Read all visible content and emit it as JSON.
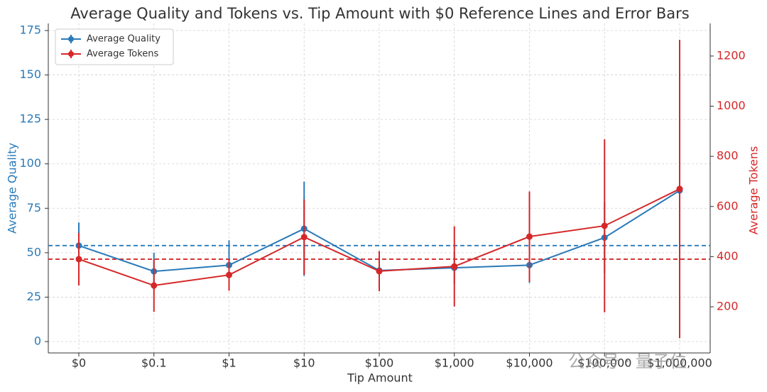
{
  "chart_data": {
    "type": "line",
    "title": "Average Quality and Tokens vs. Tip Amount with $0 Reference Lines and Error Bars",
    "x_label": "Tip Amount",
    "y_label": "Average Quality",
    "y2_label": "Average Tokens",
    "categories": [
      "$0",
      "$0.1",
      "$1",
      "$10",
      "$100",
      "$1,000",
      "$10,000",
      "$100,000",
      "$1,000,000"
    ],
    "series": [
      {
        "name": "Average Quality",
        "color": "#2a7ab8",
        "values": [
          54,
          39.5,
          43,
          63.5,
          40,
          41.5,
          43,
          58.5,
          85
        ],
        "errors": [
          13,
          10.5,
          14,
          26.5,
          8,
          9,
          10,
          20,
          30
        ]
      },
      {
        "name": "Average Tokens",
        "color": "#d62728",
        "axis": "y2",
        "values": [
          390,
          285,
          327,
          478,
          342,
          361,
          480,
          523,
          670
        ],
        "errors": [
          105,
          105,
          63,
          150,
          80,
          160,
          180,
          345,
          595
        ]
      }
    ],
    "reference_lines": [
      {
        "axis": "y",
        "value": 54,
        "color": "#2a7ab8"
      },
      {
        "axis": "y2",
        "value": 390,
        "color": "#d62728"
      }
    ],
    "ylim": [
      -6.4,
      179
    ],
    "yticks": [
      0,
      25,
      50,
      75,
      100,
      125,
      150,
      175
    ],
    "y2lim": [
      16,
      1330
    ],
    "y2ticks": [
      200,
      400,
      600,
      800,
      1000,
      1200
    ],
    "grid": true,
    "legend": "upper left",
    "watermark": "公众号 · 量子位"
  }
}
